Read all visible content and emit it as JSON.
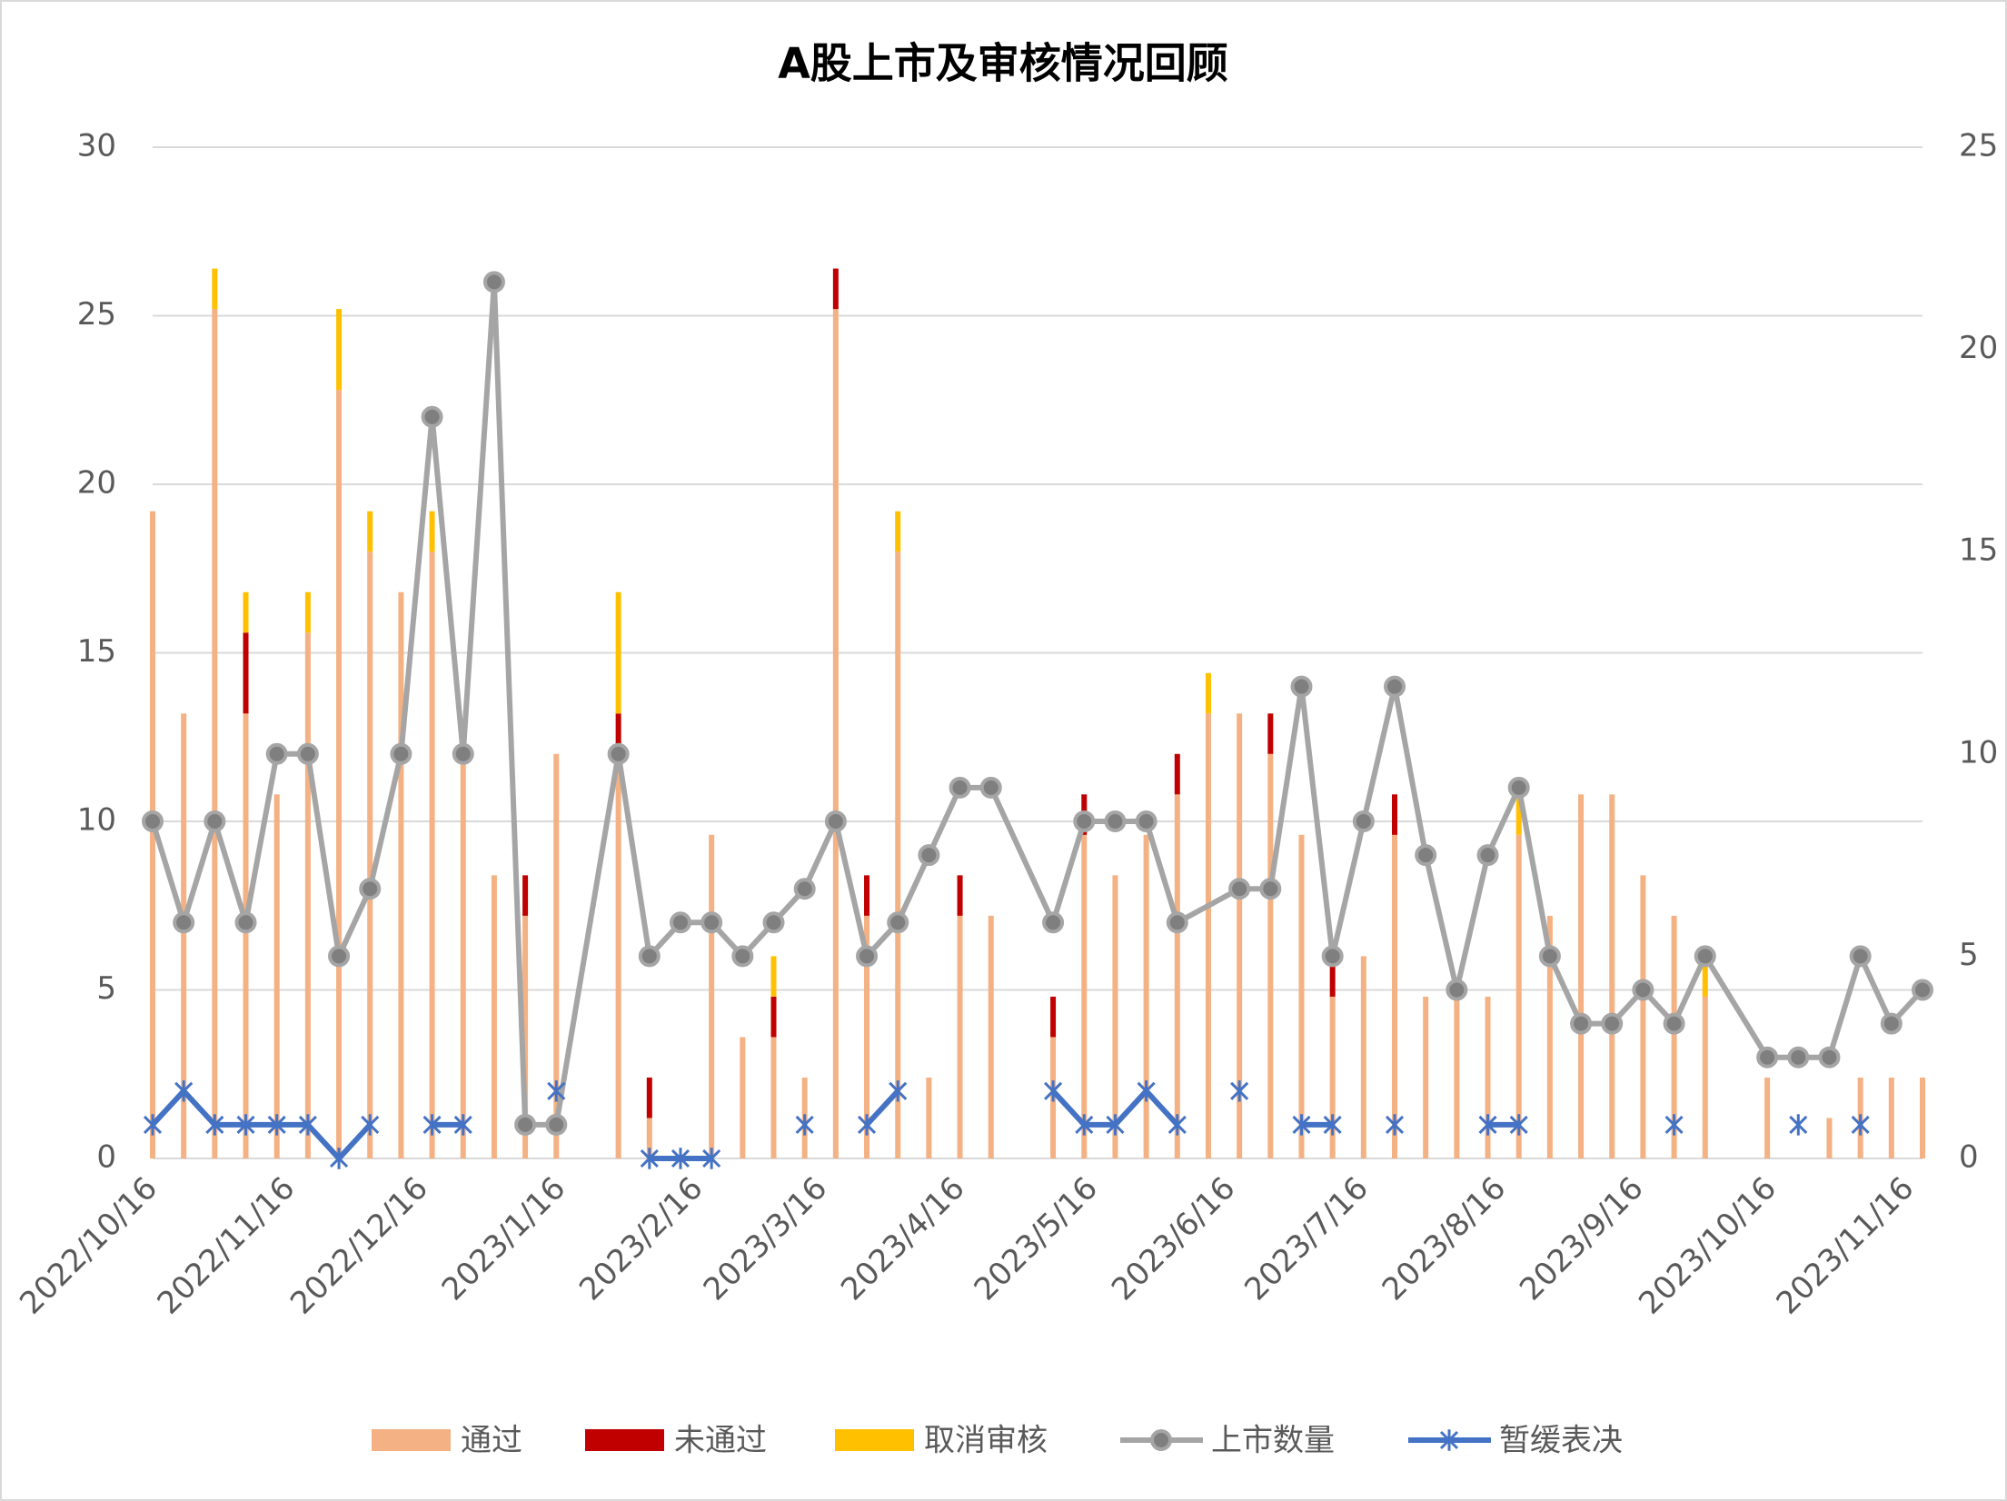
{
  "chart_data": {
    "type": "bar",
    "title": "A股上市及审核情况回顾",
    "x": [
      "2022/10/16",
      "2022/10/23",
      "2022/10/30",
      "2022/11/6",
      "2022/11/13",
      "2022/11/20",
      "2022/11/27",
      "2022/12/4",
      "2022/12/11",
      "2022/12/18",
      "2022/12/25",
      "2023/1/1",
      "2023/1/8",
      "2023/1/15",
      "2023/1/22",
      "2023/1/29",
      "2023/2/5",
      "2023/2/12",
      "2023/2/19",
      "2023/2/26",
      "2023/3/5",
      "2023/3/12",
      "2023/3/19",
      "2023/3/26",
      "2023/4/2",
      "2023/4/9",
      "2023/4/16",
      "2023/4/23",
      "2023/4/30",
      "2023/5/7",
      "2023/5/14",
      "2023/5/21",
      "2023/5/28",
      "2023/6/4",
      "2023/6/11",
      "2023/6/18",
      "2023/6/25",
      "2023/7/2",
      "2023/7/9",
      "2023/7/16",
      "2023/7/23",
      "2023/7/30",
      "2023/8/6",
      "2023/8/13",
      "2023/8/20",
      "2023/8/27",
      "2023/9/3",
      "2023/9/10",
      "2023/9/17",
      "2023/9/24",
      "2023/10/1",
      "2023/10/8",
      "2023/10/15",
      "2023/10/22",
      "2023/10/29",
      "2023/11/5",
      "2023/11/12",
      "2023/11/19"
    ],
    "xlim": [
      "2022/10/16",
      "2023/11/19"
    ],
    "xticks": [
      "2022/10/16",
      "2022/11/16",
      "2022/12/16",
      "2023/1/16",
      "2023/2/16",
      "2023/3/16",
      "2023/4/16",
      "2023/5/16",
      "2023/6/16",
      "2023/7/16",
      "2023/8/16",
      "2023/9/16",
      "2023/10/16",
      "2023/11/16"
    ],
    "ylim": [
      0,
      30
    ],
    "yticks": [
      0,
      5,
      10,
      15,
      20,
      25,
      30
    ],
    "y2lim": [
      0,
      25
    ],
    "y2ticks": [
      0,
      5,
      10,
      15,
      20,
      25
    ],
    "grid": true,
    "legend": "bottom",
    "series": [
      {
        "name": "通过",
        "type": "bar",
        "axis": "y2",
        "color": "#f4b183",
        "values": [
          16,
          11,
          21,
          11,
          9,
          13,
          19,
          15,
          14,
          15,
          10,
          7,
          6,
          10,
          0,
          10,
          1,
          0,
          8,
          3,
          3,
          2,
          21,
          6,
          15,
          2,
          6,
          6,
          0,
          3,
          8,
          7,
          8,
          9,
          11,
          11,
          10,
          8,
          4,
          5,
          8,
          4,
          4,
          4,
          8,
          6,
          9,
          9,
          7,
          6,
          4,
          0,
          2,
          0,
          1,
          2,
          2,
          2
        ]
      },
      {
        "name": "未通过",
        "type": "bar",
        "axis": "y2",
        "color": "#c00000",
        "values": [
          0,
          0,
          0,
          2,
          0,
          0,
          0,
          0,
          0,
          0,
          0,
          0,
          1,
          0,
          0,
          1,
          1,
          0,
          0,
          0,
          1,
          0,
          1,
          1,
          0,
          0,
          1,
          0,
          0,
          1,
          1,
          0,
          0,
          1,
          0,
          0,
          1,
          0,
          1,
          0,
          1,
          0,
          0,
          0,
          0,
          0,
          0,
          0,
          0,
          0,
          0,
          0,
          0,
          0,
          0,
          0,
          0,
          0
        ]
      },
      {
        "name": "取消审核",
        "type": "bar",
        "axis": "y2",
        "color": "#ffc000",
        "values": [
          0,
          0,
          1,
          1,
          0,
          1,
          2,
          1,
          0,
          1,
          0,
          0,
          0,
          0,
          0,
          3,
          0,
          0,
          0,
          0,
          1,
          0,
          0,
          0,
          1,
          0,
          0,
          0,
          0,
          0,
          0,
          0,
          0,
          0,
          1,
          0,
          0,
          0,
          0,
          0,
          0,
          0,
          0,
          0,
          1,
          0,
          0,
          0,
          0,
          0,
          1,
          0,
          0,
          0,
          0,
          0,
          0,
          0
        ]
      },
      {
        "name": "上市数量",
        "type": "line",
        "axis": "y",
        "color": "#a5a5a5",
        "marker": "circle",
        "x": [
          "2022/10/16",
          "2022/10/23",
          "2022/10/30",
          "2022/11/6",
          "2022/11/13",
          "2022/11/20",
          "2022/11/27",
          "2022/12/4",
          "2022/12/11",
          "2022/12/18",
          "2022/12/25",
          "2023/1/1",
          "2023/1/8",
          "2023/1/15",
          "2023/1/29",
          "2023/2/5",
          "2023/2/12",
          "2023/2/19",
          "2023/2/26",
          "2023/3/5",
          "2023/3/12",
          "2023/3/19",
          "2023/3/26",
          "2023/4/2",
          "2023/4/9",
          "2023/4/16",
          "2023/4/23",
          "2023/5/7",
          "2023/5/14",
          "2023/5/21",
          "2023/5/28",
          "2023/6/4",
          "2023/6/18",
          "2023/6/25",
          "2023/7/2",
          "2023/7/9",
          "2023/7/16",
          "2023/7/23",
          "2023/7/30",
          "2023/8/6",
          "2023/8/13",
          "2023/8/20",
          "2023/8/27",
          "2023/9/3",
          "2023/9/10",
          "2023/9/17",
          "2023/9/24",
          "2023/10/1",
          "2023/10/15",
          "2023/10/22",
          "2023/10/29",
          "2023/11/5",
          "2023/11/12",
          "2023/11/19"
        ],
        "values": [
          10,
          7,
          10,
          7,
          12,
          12,
          6,
          8,
          12,
          22,
          12,
          26,
          1,
          1,
          12,
          6,
          7,
          7,
          6,
          7,
          8,
          10,
          6,
          7,
          9,
          11,
          11,
          7,
          10,
          10,
          10,
          7,
          8,
          8,
          14,
          6,
          10,
          14,
          9,
          5,
          9,
          11,
          6,
          4,
          4,
          5,
          4,
          6,
          3,
          3,
          3,
          6,
          4,
          5
        ]
      },
      {
        "name": "暂缓表决",
        "type": "line",
        "axis": "y",
        "color": "#4472c4",
        "marker": "star",
        "values": [
          1,
          2,
          1,
          1,
          1,
          1,
          0,
          1,
          null,
          1,
          1,
          null,
          null,
          2,
          null,
          null,
          0,
          0,
          0,
          null,
          null,
          1,
          null,
          1,
          2,
          null,
          null,
          null,
          null,
          2,
          1,
          1,
          2,
          1,
          null,
          2,
          null,
          1,
          1,
          null,
          1,
          null,
          null,
          1,
          1,
          null,
          null,
          null,
          null,
          1,
          null,
          null,
          null,
          1,
          null,
          1,
          null,
          null
        ]
      }
    ]
  }
}
